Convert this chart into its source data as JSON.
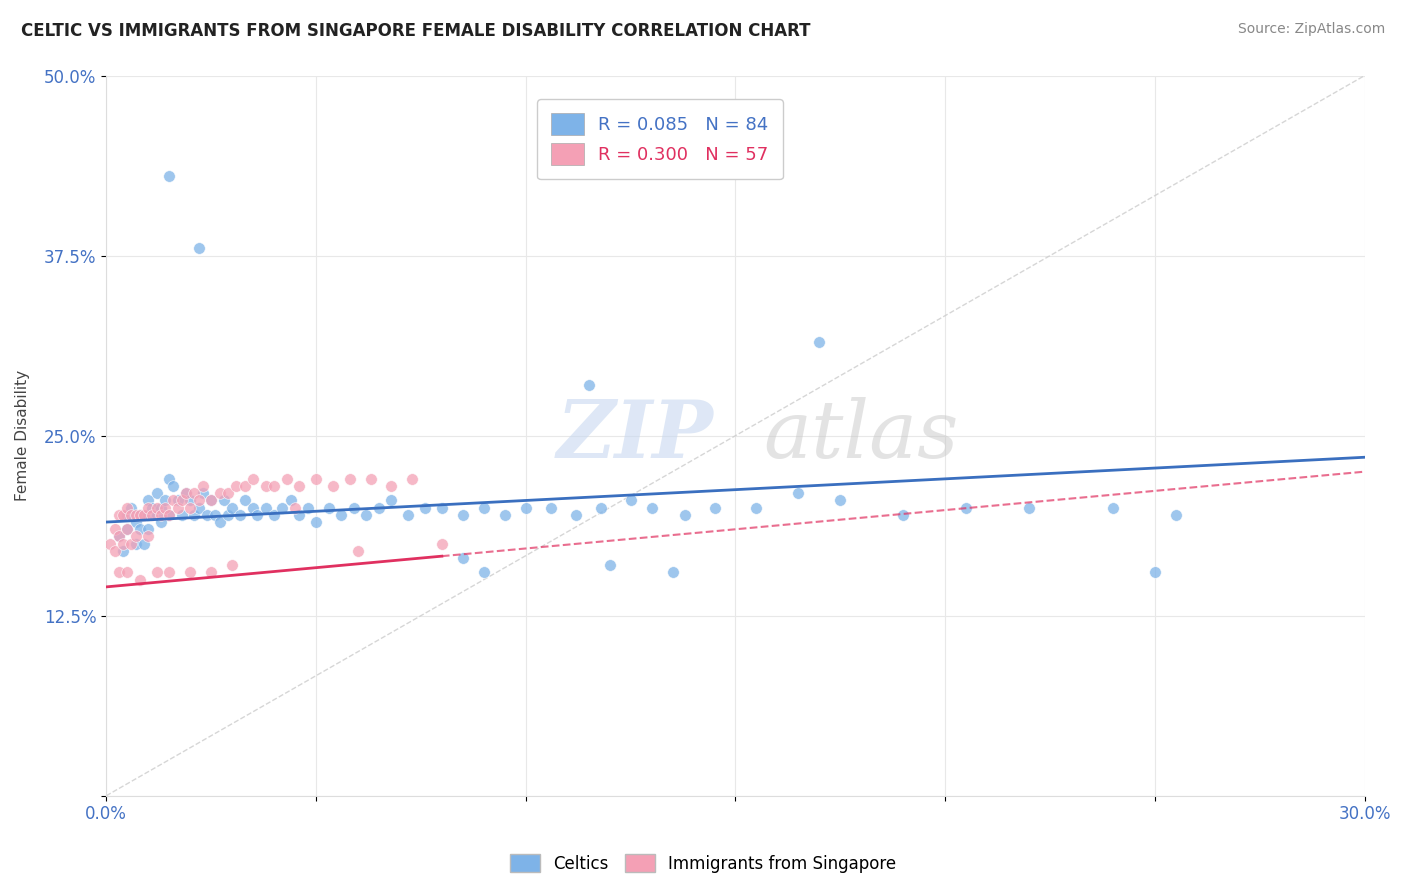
{
  "title": "CELTIC VS IMMIGRANTS FROM SINGAPORE FEMALE DISABILITY CORRELATION CHART",
  "source": "Source: ZipAtlas.com",
  "ylabel": "Female Disability",
  "xlim": [
    0.0,
    0.3
  ],
  "ylim": [
    0.0,
    0.5
  ],
  "color_celtics": "#7EB3E8",
  "color_singapore": "#F4A0B5",
  "line_color_celtics": "#3A6FBF",
  "line_color_singapore": "#E03060",
  "legend_labels": [
    "Celtics",
    "Immigrants from Singapore"
  ],
  "R_celtics": 0.085,
  "N_celtics": 84,
  "R_singapore": 0.3,
  "N_singapore": 57,
  "celtics_x": [
    0.003,
    0.004,
    0.005,
    0.005,
    0.006,
    0.007,
    0.007,
    0.008,
    0.008,
    0.009,
    0.01,
    0.01,
    0.01,
    0.011,
    0.012,
    0.012,
    0.013,
    0.013,
    0.014,
    0.015,
    0.015,
    0.016,
    0.017,
    0.018,
    0.019,
    0.02,
    0.021,
    0.022,
    0.023,
    0.024,
    0.025,
    0.026,
    0.027,
    0.028,
    0.029,
    0.03,
    0.032,
    0.033,
    0.035,
    0.036,
    0.038,
    0.04,
    0.042,
    0.044,
    0.046,
    0.048,
    0.05,
    0.053,
    0.056,
    0.059,
    0.062,
    0.065,
    0.068,
    0.072,
    0.076,
    0.08,
    0.085,
    0.09,
    0.095,
    0.1,
    0.106,
    0.112,
    0.118,
    0.125,
    0.13,
    0.138,
    0.145,
    0.155,
    0.165,
    0.175,
    0.19,
    0.205,
    0.22,
    0.24,
    0.015,
    0.022,
    0.17,
    0.255,
    0.085,
    0.09,
    0.12,
    0.135,
    0.25,
    0.115
  ],
  "celtics_y": [
    0.18,
    0.17,
    0.195,
    0.185,
    0.2,
    0.19,
    0.175,
    0.195,
    0.185,
    0.175,
    0.205,
    0.195,
    0.185,
    0.2,
    0.21,
    0.195,
    0.2,
    0.19,
    0.205,
    0.22,
    0.195,
    0.215,
    0.205,
    0.195,
    0.21,
    0.205,
    0.195,
    0.2,
    0.21,
    0.195,
    0.205,
    0.195,
    0.19,
    0.205,
    0.195,
    0.2,
    0.195,
    0.205,
    0.2,
    0.195,
    0.2,
    0.195,
    0.2,
    0.205,
    0.195,
    0.2,
    0.19,
    0.2,
    0.195,
    0.2,
    0.195,
    0.2,
    0.205,
    0.195,
    0.2,
    0.2,
    0.195,
    0.2,
    0.195,
    0.2,
    0.2,
    0.195,
    0.2,
    0.205,
    0.2,
    0.195,
    0.2,
    0.2,
    0.21,
    0.205,
    0.195,
    0.2,
    0.2,
    0.2,
    0.43,
    0.38,
    0.315,
    0.195,
    0.165,
    0.155,
    0.16,
    0.155,
    0.155,
    0.285
  ],
  "singapore_x": [
    0.001,
    0.002,
    0.002,
    0.003,
    0.003,
    0.004,
    0.004,
    0.005,
    0.005,
    0.006,
    0.006,
    0.007,
    0.007,
    0.008,
    0.009,
    0.01,
    0.01,
    0.011,
    0.012,
    0.013,
    0.014,
    0.015,
    0.016,
    0.017,
    0.018,
    0.019,
    0.02,
    0.021,
    0.022,
    0.023,
    0.025,
    0.027,
    0.029,
    0.031,
    0.033,
    0.035,
    0.038,
    0.04,
    0.043,
    0.046,
    0.05,
    0.054,
    0.058,
    0.063,
    0.068,
    0.073,
    0.003,
    0.005,
    0.008,
    0.012,
    0.015,
    0.02,
    0.025,
    0.03,
    0.06,
    0.08,
    0.045
  ],
  "singapore_y": [
    0.175,
    0.185,
    0.17,
    0.195,
    0.18,
    0.195,
    0.175,
    0.2,
    0.185,
    0.195,
    0.175,
    0.195,
    0.18,
    0.195,
    0.195,
    0.2,
    0.18,
    0.195,
    0.2,
    0.195,
    0.2,
    0.195,
    0.205,
    0.2,
    0.205,
    0.21,
    0.2,
    0.21,
    0.205,
    0.215,
    0.205,
    0.21,
    0.21,
    0.215,
    0.215,
    0.22,
    0.215,
    0.215,
    0.22,
    0.215,
    0.22,
    0.215,
    0.22,
    0.22,
    0.215,
    0.22,
    0.155,
    0.155,
    0.15,
    0.155,
    0.155,
    0.155,
    0.155,
    0.16,
    0.17,
    0.175,
    0.2
  ]
}
